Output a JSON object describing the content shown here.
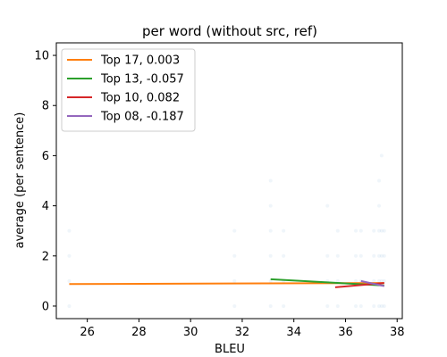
{
  "chart_data": {
    "type": "line",
    "title": "per word (without src, ref)",
    "xlabel": "BLEU",
    "ylabel": "average (per sentence)",
    "xlim": [
      24.8,
      38.2
    ],
    "ylim": [
      -0.5,
      10.5
    ],
    "xticks": [
      26,
      28,
      30,
      32,
      34,
      36,
      38
    ],
    "yticks": [
      0,
      2,
      4,
      6,
      8,
      10
    ],
    "grid": false,
    "legend_position": "top-left",
    "series": [
      {
        "name": "Top 17,  0.003",
        "color": "#ff7f0e",
        "x": [
          25.3,
          37.5
        ],
        "y": [
          0.88,
          0.92
        ]
      },
      {
        "name": "Top 13, -0.057",
        "color": "#2ca02c",
        "x": [
          33.1,
          37.5
        ],
        "y": [
          1.07,
          0.82
        ]
      },
      {
        "name": "Top 10,  0.082",
        "color": "#d62728",
        "x": [
          35.6,
          37.5
        ],
        "y": [
          0.75,
          0.92
        ]
      },
      {
        "name": "Top 08, -0.187",
        "color": "#9467bd",
        "x": [
          36.6,
          37.5
        ],
        "y": [
          1.0,
          0.8
        ]
      }
    ],
    "scatter_color": "#1f77b4",
    "points": [
      {
        "x": 25.3,
        "y": 0
      },
      {
        "x": 25.3,
        "y": 1
      },
      {
        "x": 25.3,
        "y": 2
      },
      {
        "x": 25.3,
        "y": 3
      },
      {
        "x": 31.7,
        "y": 0
      },
      {
        "x": 31.7,
        "y": 1
      },
      {
        "x": 31.7,
        "y": 2
      },
      {
        "x": 31.7,
        "y": 3
      },
      {
        "x": 33.1,
        "y": 0
      },
      {
        "x": 33.1,
        "y": 1
      },
      {
        "x": 33.1,
        "y": 2
      },
      {
        "x": 33.1,
        "y": 3
      },
      {
        "x": 33.1,
        "y": 4
      },
      {
        "x": 33.1,
        "y": 5
      },
      {
        "x": 33.6,
        "y": 0
      },
      {
        "x": 33.6,
        "y": 1
      },
      {
        "x": 33.6,
        "y": 2
      },
      {
        "x": 33.6,
        "y": 3
      },
      {
        "x": 35.3,
        "y": 0
      },
      {
        "x": 35.3,
        "y": 1
      },
      {
        "x": 35.3,
        "y": 2
      },
      {
        "x": 35.3,
        "y": 4
      },
      {
        "x": 35.7,
        "y": 0
      },
      {
        "x": 35.7,
        "y": 1
      },
      {
        "x": 35.7,
        "y": 2
      },
      {
        "x": 35.7,
        "y": 3
      },
      {
        "x": 36.4,
        "y": 0
      },
      {
        "x": 36.4,
        "y": 1
      },
      {
        "x": 36.4,
        "y": 2
      },
      {
        "x": 36.4,
        "y": 3
      },
      {
        "x": 36.6,
        "y": 0
      },
      {
        "x": 36.6,
        "y": 1
      },
      {
        "x": 36.6,
        "y": 2
      },
      {
        "x": 36.6,
        "y": 3
      },
      {
        "x": 37.1,
        "y": 0
      },
      {
        "x": 37.1,
        "y": 1
      },
      {
        "x": 37.1,
        "y": 2
      },
      {
        "x": 37.1,
        "y": 3
      },
      {
        "x": 37.3,
        "y": 0
      },
      {
        "x": 37.3,
        "y": 1
      },
      {
        "x": 37.3,
        "y": 2
      },
      {
        "x": 37.3,
        "y": 3
      },
      {
        "x": 37.3,
        "y": 4
      },
      {
        "x": 37.3,
        "y": 5
      },
      {
        "x": 37.4,
        "y": 0
      },
      {
        "x": 37.4,
        "y": 1
      },
      {
        "x": 37.4,
        "y": 2
      },
      {
        "x": 37.4,
        "y": 3
      },
      {
        "x": 37.4,
        "y": 6
      },
      {
        "x": 37.5,
        "y": 0
      },
      {
        "x": 37.5,
        "y": 1
      },
      {
        "x": 37.5,
        "y": 2
      },
      {
        "x": 37.5,
        "y": 3
      }
    ]
  }
}
